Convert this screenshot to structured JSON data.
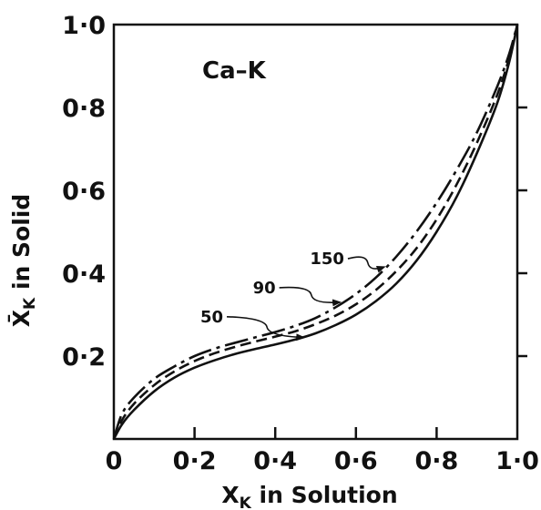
{
  "chart_data": {
    "type": "line",
    "title": "",
    "panel_label": "Ca–K",
    "xlabel_main": "X",
    "xlabel_sub": "K",
    "xlabel_rest": " in Solution",
    "ylabel_main": "X̄",
    "ylabel_sub": "K",
    "ylabel_rest": " in Solid",
    "xlim": [
      0,
      1
    ],
    "ylim": [
      0,
      1
    ],
    "grid": false,
    "x_ticks": [
      {
        "value": 0,
        "label": "0"
      },
      {
        "value": 0.2,
        "label": "0·2"
      },
      {
        "value": 0.4,
        "label": "0·4"
      },
      {
        "value": 0.6,
        "label": "0·6"
      },
      {
        "value": 0.8,
        "label": "0·8"
      },
      {
        "value": 1.0,
        "label": "1·0"
      }
    ],
    "y_ticks": [
      {
        "value": 0.2,
        "label": "0·2"
      },
      {
        "value": 0.4,
        "label": "0·4"
      },
      {
        "value": 0.6,
        "label": "0·6"
      },
      {
        "value": 0.8,
        "label": "0·8"
      },
      {
        "value": 1.0,
        "label": "1·0"
      }
    ],
    "origin_label": "0",
    "series": [
      {
        "name": "150",
        "dash": "long-dash-dot",
        "points": [
          [
            0,
            0
          ],
          [
            0.02,
            0.06
          ],
          [
            0.05,
            0.1
          ],
          [
            0.1,
            0.145
          ],
          [
            0.15,
            0.175
          ],
          [
            0.2,
            0.2
          ],
          [
            0.25,
            0.218
          ],
          [
            0.3,
            0.232
          ],
          [
            0.35,
            0.245
          ],
          [
            0.4,
            0.258
          ],
          [
            0.45,
            0.273
          ],
          [
            0.5,
            0.292
          ],
          [
            0.55,
            0.318
          ],
          [
            0.6,
            0.35
          ],
          [
            0.65,
            0.39
          ],
          [
            0.7,
            0.44
          ],
          [
            0.75,
            0.5
          ],
          [
            0.8,
            0.57
          ],
          [
            0.85,
            0.65
          ],
          [
            0.9,
            0.74
          ],
          [
            0.95,
            0.85
          ],
          [
            0.98,
            0.93
          ],
          [
            1.0,
            1.0
          ]
        ]
      },
      {
        "name": "90",
        "dash": "dashed",
        "points": [
          [
            0,
            0
          ],
          [
            0.02,
            0.045
          ],
          [
            0.05,
            0.085
          ],
          [
            0.1,
            0.13
          ],
          [
            0.15,
            0.163
          ],
          [
            0.2,
            0.188
          ],
          [
            0.25,
            0.207
          ],
          [
            0.3,
            0.222
          ],
          [
            0.35,
            0.235
          ],
          [
            0.4,
            0.247
          ],
          [
            0.45,
            0.26
          ],
          [
            0.5,
            0.277
          ],
          [
            0.55,
            0.298
          ],
          [
            0.6,
            0.325
          ],
          [
            0.65,
            0.36
          ],
          [
            0.7,
            0.405
          ],
          [
            0.75,
            0.46
          ],
          [
            0.8,
            0.53
          ],
          [
            0.85,
            0.615
          ],
          [
            0.9,
            0.715
          ],
          [
            0.95,
            0.83
          ],
          [
            0.98,
            0.92
          ],
          [
            1.0,
            1.0
          ]
        ]
      },
      {
        "name": "50",
        "dash": "solid",
        "points": [
          [
            0,
            0
          ],
          [
            0.02,
            0.035
          ],
          [
            0.05,
            0.07
          ],
          [
            0.1,
            0.115
          ],
          [
            0.15,
            0.148
          ],
          [
            0.2,
            0.172
          ],
          [
            0.25,
            0.19
          ],
          [
            0.3,
            0.205
          ],
          [
            0.35,
            0.217
          ],
          [
            0.4,
            0.228
          ],
          [
            0.45,
            0.24
          ],
          [
            0.5,
            0.255
          ],
          [
            0.55,
            0.275
          ],
          [
            0.6,
            0.3
          ],
          [
            0.65,
            0.333
          ],
          [
            0.7,
            0.375
          ],
          [
            0.75,
            0.43
          ],
          [
            0.8,
            0.5
          ],
          [
            0.85,
            0.585
          ],
          [
            0.9,
            0.69
          ],
          [
            0.95,
            0.81
          ],
          [
            0.98,
            0.91
          ],
          [
            1.0,
            1.0
          ]
        ]
      }
    ],
    "annotations": [
      {
        "text": "150",
        "series": "150",
        "label_at": [
          0.58,
          0.435
        ],
        "arrow_to": [
          0.67,
          0.415
        ]
      },
      {
        "text": "90",
        "series": "90",
        "label_at": [
          0.41,
          0.365
        ],
        "arrow_to": [
          0.56,
          0.33
        ]
      },
      {
        "text": "50",
        "series": "50",
        "label_at": [
          0.28,
          0.295
        ],
        "arrow_to": [
          0.47,
          0.245
        ]
      }
    ]
  }
}
